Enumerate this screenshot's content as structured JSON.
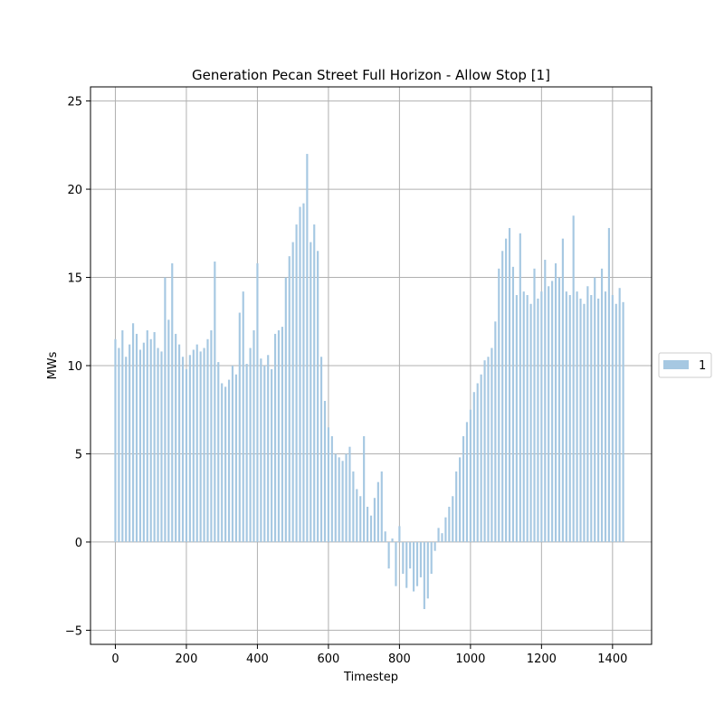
{
  "chart_data": {
    "type": "bar",
    "title": "Generation Pecan Street Full Horizon - Allow Stop [1]",
    "xlabel": "Timestep",
    "ylabel": "MWs",
    "xlim": [
      -70,
      1510
    ],
    "ylim": [
      -5.8,
      25.8
    ],
    "xticks": [
      0,
      200,
      400,
      600,
      800,
      1000,
      1200,
      1400
    ],
    "yticks": [
      -5,
      0,
      5,
      10,
      15,
      20,
      25
    ],
    "grid": true,
    "legend_position": "center-right-outside",
    "bar_color": "#a6c8e2",
    "series": [
      {
        "name": "1",
        "timestep_step": 10,
        "x_start": 0,
        "values": [
          11.5,
          11.0,
          12.0,
          10.5,
          11.2,
          12.4,
          11.8,
          10.9,
          11.3,
          12.0,
          11.5,
          11.9,
          11.0,
          10.8,
          15.0,
          12.6,
          15.8,
          11.8,
          11.2,
          10.5,
          9.8,
          10.6,
          10.9,
          11.2,
          10.8,
          11.0,
          11.5,
          12.0,
          15.9,
          10.2,
          9.0,
          8.8,
          9.2,
          10.0,
          9.5,
          13.0,
          14.2,
          10.1,
          11.0,
          12.0,
          15.8,
          10.4,
          10.0,
          10.6,
          9.8,
          11.8,
          12.0,
          12.2,
          15.0,
          16.2,
          17.0,
          18.0,
          19.0,
          19.2,
          22.0,
          17.0,
          18.0,
          16.5,
          10.5,
          8.0,
          6.5,
          6.0,
          5.0,
          4.8,
          4.6,
          5.0,
          5.4,
          4.0,
          3.0,
          2.6,
          6.0,
          2.0,
          1.5,
          2.5,
          3.4,
          4.0,
          0.6,
          -1.5,
          0.2,
          -2.5,
          0.9,
          -1.8,
          -2.6,
          -1.5,
          -2.8,
          -2.5,
          -2.0,
          -3.8,
          -3.2,
          -1.8,
          -0.5,
          0.8,
          0.5,
          1.4,
          2.0,
          2.6,
          4.0,
          4.8,
          6.0,
          6.8,
          7.5,
          8.5,
          9.0,
          9.5,
          10.3,
          10.5,
          11.0,
          12.5,
          15.5,
          16.5,
          17.2,
          17.8,
          15.6,
          14.0,
          17.5,
          14.2,
          14.0,
          13.5,
          15.5,
          13.8,
          14.2,
          16.0,
          14.5,
          14.8,
          15.8,
          15.0,
          17.2,
          14.2,
          14.0,
          18.5,
          14.2,
          13.8,
          13.5,
          14.5,
          14.0,
          15.0,
          13.8,
          15.5,
          14.2,
          17.8,
          14.0,
          13.5,
          14.4,
          13.6
        ]
      }
    ]
  }
}
